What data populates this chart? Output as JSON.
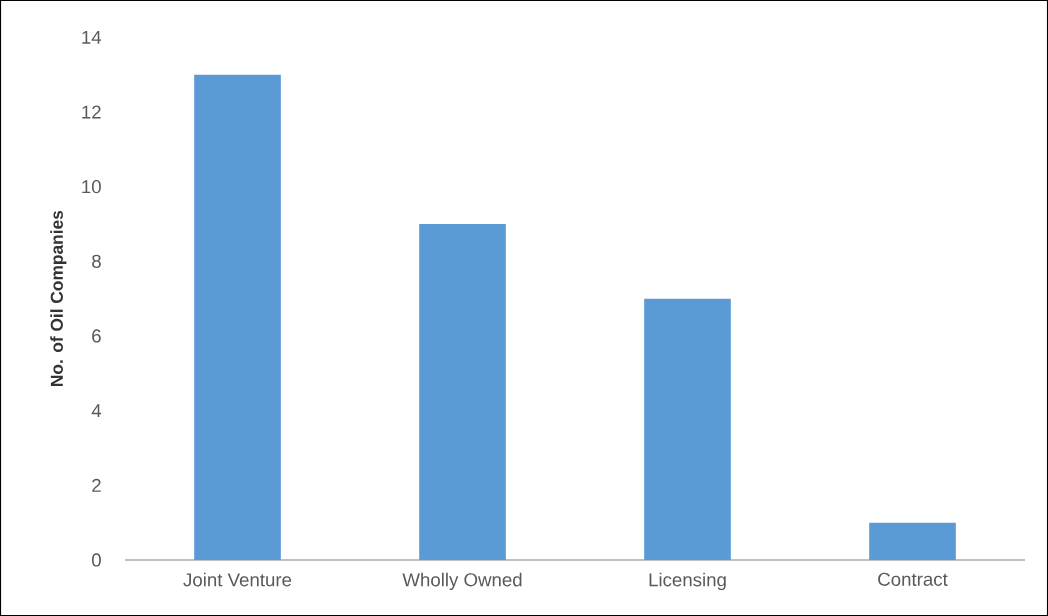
{
  "chart_data": {
    "type": "bar",
    "ylabel": "No. of Oil Companies",
    "categories": [
      "Joint Venture",
      "Wholly Owned",
      "Licensing",
      "Contract"
    ],
    "values": [
      13,
      9,
      7,
      1
    ],
    "color": "#5b9bd5",
    "ylim": [
      0,
      14
    ],
    "yticks": [
      0,
      2,
      4,
      6,
      8,
      10,
      12,
      14
    ]
  }
}
